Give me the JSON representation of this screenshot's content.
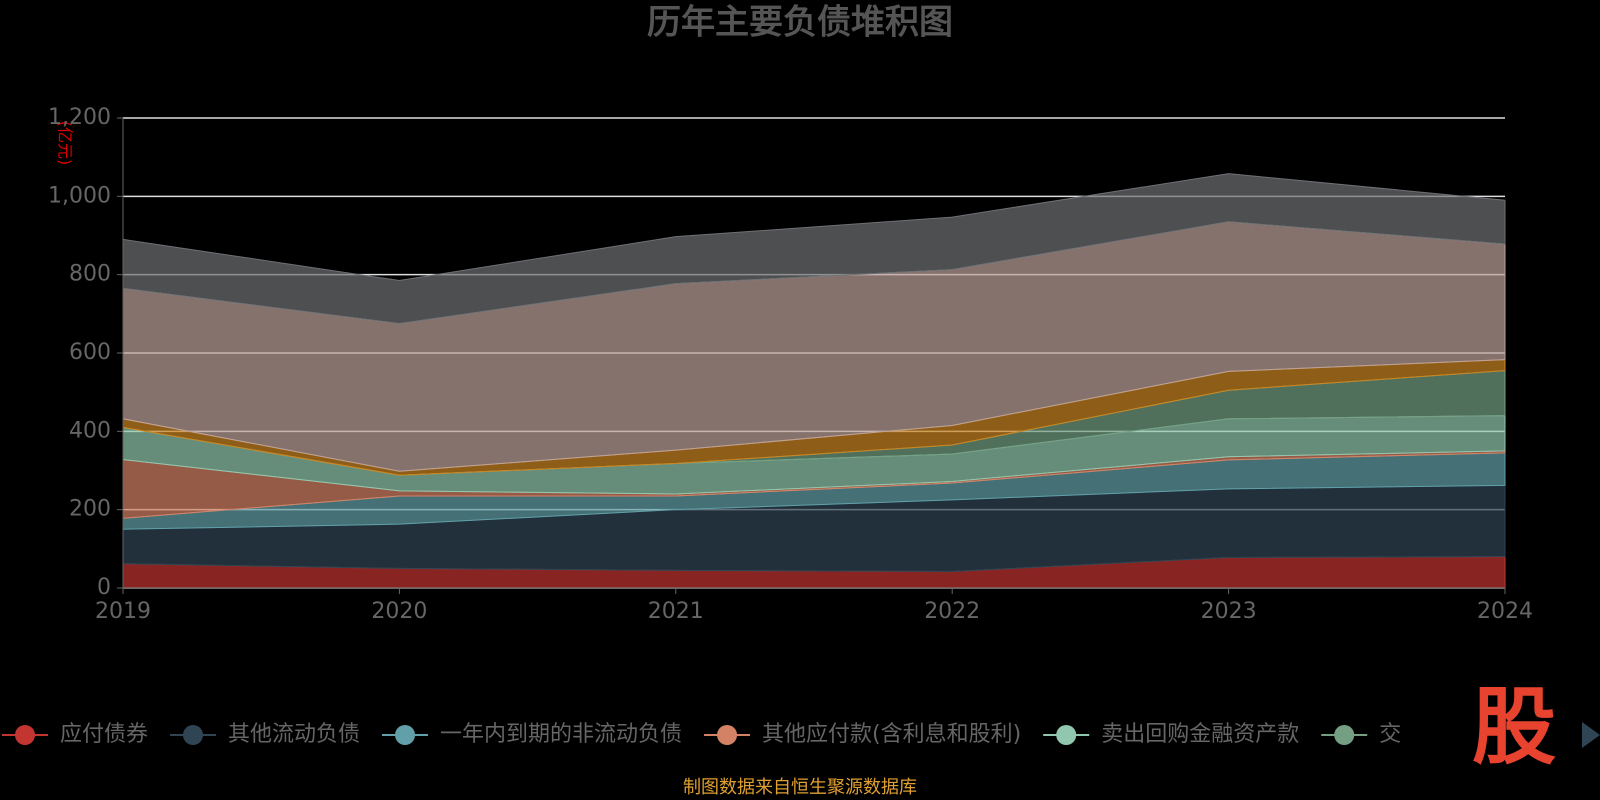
{
  "chart_data": {
    "type": "stacked-area",
    "title": "历年主要负债堆积图",
    "y_label": "(亿元)",
    "categories": [
      "2019",
      "2020",
      "2021",
      "2022",
      "2023",
      "2024"
    ],
    "ylim": [
      0,
      1200
    ],
    "yticks": [
      0,
      200,
      400,
      600,
      800,
      {
        "value": 1000,
        "label": "1,000"
      },
      {
        "value": 1200,
        "label": "1,200"
      }
    ],
    "grid": true,
    "series": [
      {
        "name": "应付债券",
        "color": "#c23531",
        "values": [
          62,
          50,
          45,
          42,
          78,
          80
        ]
      },
      {
        "name": "其他流动负债",
        "color": "#2f4554",
        "values": [
          88,
          113,
          155,
          183,
          175,
          182
        ]
      },
      {
        "name": "一年内到期的非流动负债",
        "color": "#61a0a8",
        "values": [
          28,
          72,
          35,
          43,
          74,
          83
        ]
      },
      {
        "name": "其他应付款(含利息和股利)",
        "color": "#d48265",
        "values": [
          150,
          13,
          5,
          4,
          8,
          5
        ]
      },
      {
        "name": "卖出回购金融资产款",
        "color": "#91c7ae",
        "values": [
          82,
          40,
          78,
          70,
          97,
          90
        ]
      },
      {
        "name": "交",
        "color": "#749f83",
        "values": [
          0,
          0,
          0,
          23,
          73,
          115
        ]
      },
      {
        "color": "#ca8622",
        "values": [
          22,
          10,
          34,
          50,
          48,
          28
        ]
      },
      {
        "color": "#bda29a",
        "values": [
          333,
          377,
          425,
          398,
          382,
          295
        ]
      },
      {
        "color": "#6e7074",
        "values": [
          125,
          110,
          120,
          134,
          123,
          112
        ]
      }
    ],
    "source": "制图数据来自恒生聚源数据库",
    "watermark": "股"
  }
}
